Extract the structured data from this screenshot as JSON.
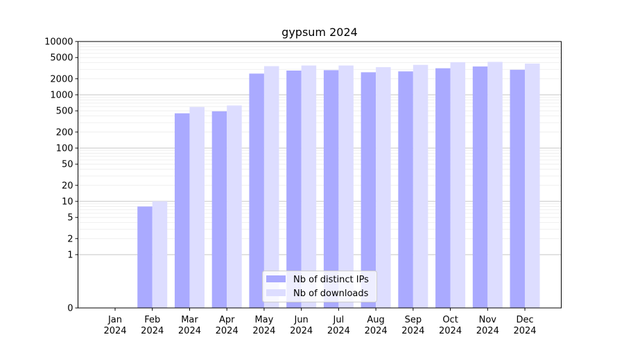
{
  "chart_data": {
    "type": "bar",
    "title": "gypsum 2024",
    "xlabel": "",
    "ylabel": "",
    "y_scale": "symlog",
    "ylim": [
      0,
      10000
    ],
    "y_ticks": [
      0,
      1,
      2,
      5,
      10,
      20,
      50,
      100,
      200,
      500,
      1000,
      2000,
      5000,
      10000
    ],
    "categories": [
      "Jan\n2024",
      "Feb\n2024",
      "Mar\n2024",
      "Apr\n2024",
      "May\n2024",
      "Jun\n2024",
      "Jul\n2024",
      "Aug\n2024",
      "Sep\n2024",
      "Oct\n2024",
      "Nov\n2024",
      "Dec\n2024"
    ],
    "series": [
      {
        "name": "Nb of distinct IPs",
        "color": "#aaaaff",
        "values": [
          0,
          8,
          450,
          490,
          2500,
          2850,
          2900,
          2650,
          2750,
          3150,
          3400,
          2950
        ]
      },
      {
        "name": "Nb of downloads",
        "color": "#ddddff",
        "values": [
          0,
          10,
          590,
          630,
          3450,
          3550,
          3550,
          3300,
          3650,
          4100,
          4150,
          3850
        ]
      }
    ],
    "legend_position": "bottom-center",
    "grid": true
  }
}
